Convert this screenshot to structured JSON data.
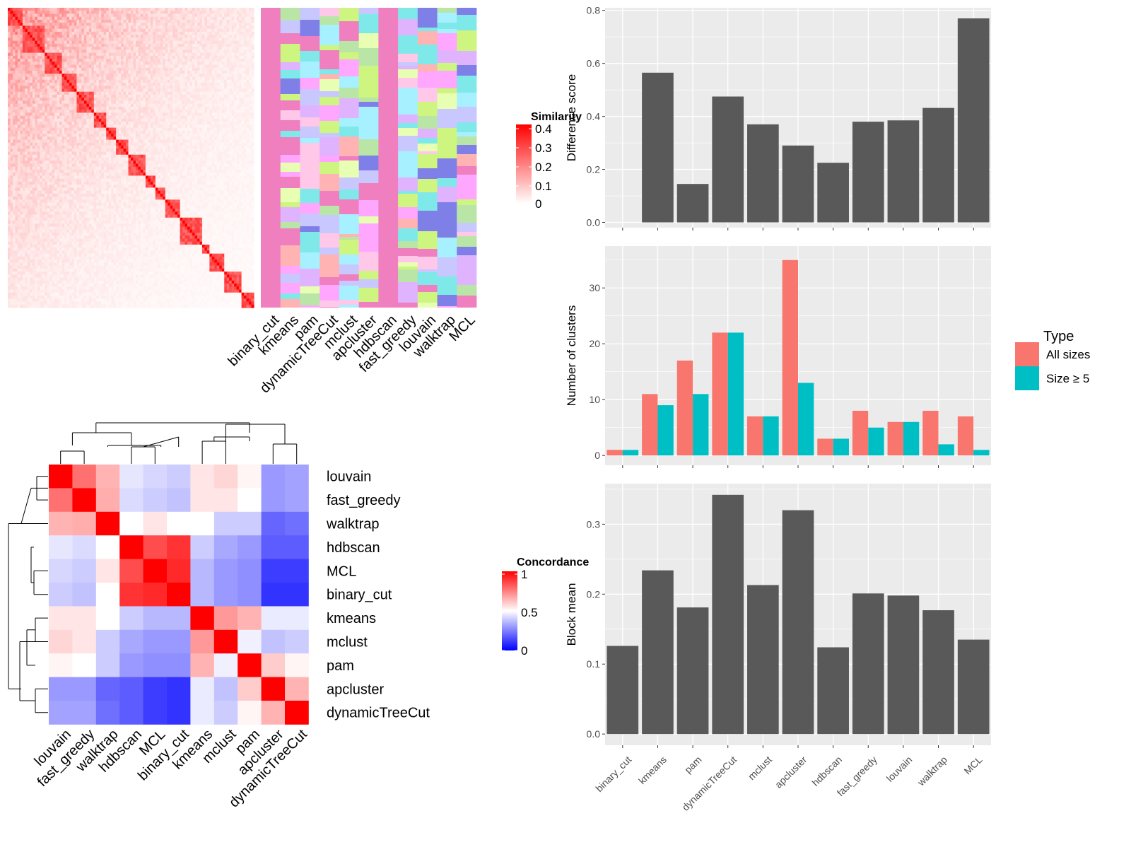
{
  "chart_data": [
    {
      "type": "heatmap",
      "panel": "similarity-matrix",
      "legend_title": "Similarity",
      "legend_ticks": [
        "0",
        "0.1",
        "0.2",
        "0.3",
        "0.4"
      ],
      "value_range": [
        0,
        0.4
      ],
      "colors": {
        "low": "#ffffff",
        "high": "#ff0000"
      },
      "column_labels": [
        "binary_cut",
        "kmeans",
        "pam",
        "dynamicTreeCut",
        "mclust",
        "apcluster",
        "hdbscan",
        "fast_greedy",
        "louvain",
        "walktrap",
        "MCL"
      ]
    },
    {
      "type": "heatmap",
      "panel": "concordance",
      "legend_title": "Concordance",
      "legend_ticks": [
        "0",
        "0.5",
        "1"
      ],
      "colors": {
        "low": "#0000ff",
        "mid": "#ffffff",
        "high": "#ff0000"
      },
      "row_labels": [
        "louvain",
        "fast_greedy",
        "walktrap",
        "hdbscan",
        "MCL",
        "binary_cut",
        "kmeans",
        "mclust",
        "pam",
        "apcluster",
        "dynamicTreeCut"
      ],
      "col_labels": [
        "louvain",
        "fast_greedy",
        "walktrap",
        "hdbscan",
        "MCL",
        "binary_cut",
        "kmeans",
        "mclust",
        "pam",
        "apcluster",
        "dynamicTreeCut"
      ],
      "values": [
        [
          1.0,
          0.78,
          0.65,
          0.45,
          0.42,
          0.4,
          0.55,
          0.58,
          0.52,
          0.3,
          0.32
        ],
        [
          0.78,
          1.0,
          0.66,
          0.43,
          0.4,
          0.38,
          0.55,
          0.55,
          0.5,
          0.3,
          0.32
        ],
        [
          0.65,
          0.66,
          1.0,
          0.5,
          0.55,
          0.5,
          0.5,
          0.4,
          0.4,
          0.2,
          0.22
        ],
        [
          0.45,
          0.43,
          0.5,
          1.0,
          0.85,
          0.9,
          0.4,
          0.33,
          0.3,
          0.18,
          0.18
        ],
        [
          0.42,
          0.4,
          0.55,
          0.85,
          1.0,
          0.92,
          0.36,
          0.3,
          0.28,
          0.12,
          0.12
        ],
        [
          0.4,
          0.38,
          0.5,
          0.9,
          0.92,
          1.0,
          0.36,
          0.3,
          0.28,
          0.1,
          0.1
        ],
        [
          0.55,
          0.55,
          0.5,
          0.4,
          0.36,
          0.36,
          1.0,
          0.7,
          0.65,
          0.46,
          0.46
        ],
        [
          0.58,
          0.55,
          0.4,
          0.33,
          0.3,
          0.3,
          0.7,
          1.0,
          0.47,
          0.38,
          0.4
        ],
        [
          0.52,
          0.5,
          0.4,
          0.3,
          0.28,
          0.28,
          0.65,
          0.47,
          1.0,
          0.6,
          0.52
        ],
        [
          0.3,
          0.3,
          0.2,
          0.18,
          0.12,
          0.1,
          0.46,
          0.38,
          0.6,
          1.0,
          0.65
        ],
        [
          0.32,
          0.32,
          0.22,
          0.18,
          0.12,
          0.1,
          0.46,
          0.4,
          0.52,
          0.65,
          1.0
        ]
      ]
    },
    {
      "type": "bar",
      "panel": "difference-score",
      "categories": [
        "binary_cut",
        "kmeans",
        "pam",
        "dynamicTreeCut",
        "mclust",
        "apcluster",
        "hdbscan",
        "fast_greedy",
        "louvain",
        "walktrap",
        "MCL"
      ],
      "values": [
        0.0,
        0.565,
        0.145,
        0.475,
        0.37,
        0.29,
        0.225,
        0.38,
        0.385,
        0.432,
        0.77
      ],
      "ylabel": "Difference score",
      "ylim": [
        -0.02,
        0.81
      ],
      "yticks": [
        0.0,
        0.2,
        0.4,
        0.6,
        0.8
      ],
      "ytick_labels": [
        "0.0",
        "0.2",
        "0.4",
        "0.6",
        "0.8"
      ],
      "bar_color": "#595959"
    },
    {
      "type": "bar",
      "panel": "number-of-clusters",
      "categories": [
        "binary_cut",
        "kmeans",
        "pam",
        "dynamicTreeCut",
        "mclust",
        "apcluster",
        "hdbscan",
        "fast_greedy",
        "louvain",
        "walktrap",
        "MCL"
      ],
      "series": [
        {
          "name": "All sizes",
          "color": "#F8766D",
          "values": [
            1,
            11,
            17,
            22,
            7,
            35,
            3,
            8,
            6,
            8,
            7
          ]
        },
        {
          "name": "Size ≥ 5",
          "color": "#00BFC4",
          "values": [
            1,
            9,
            11,
            22,
            7,
            13,
            3,
            5,
            6,
            2,
            1
          ]
        }
      ],
      "ylabel": "Number of clusters",
      "ylim": [
        -1.75,
        37.5
      ],
      "yticks": [
        0,
        10,
        20,
        30
      ],
      "ytick_labels": [
        "0",
        "10",
        "20",
        "30"
      ],
      "legend_title": "Type",
      "legend_position": "right"
    },
    {
      "type": "bar",
      "panel": "block-mean",
      "categories": [
        "binary_cut",
        "kmeans",
        "pam",
        "dynamicTreeCut",
        "mclust",
        "apcluster",
        "hdbscan",
        "fast_greedy",
        "louvain",
        "walktrap",
        "MCL"
      ],
      "values": [
        0.126,
        0.234,
        0.181,
        0.342,
        0.213,
        0.32,
        0.124,
        0.201,
        0.198,
        0.177,
        0.135
      ],
      "ylabel": "Block mean",
      "ylim": [
        -0.016,
        0.358
      ],
      "yticks": [
        0.0,
        0.1,
        0.2,
        0.3
      ],
      "ytick_labels": [
        "0.0",
        "0.1",
        "0.2",
        "0.3"
      ],
      "bar_color": "#595959"
    }
  ]
}
